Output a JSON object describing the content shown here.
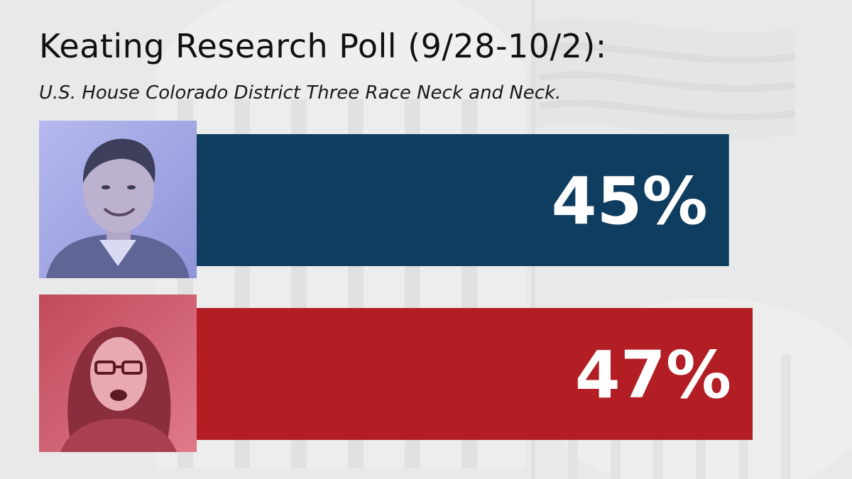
{
  "header": {
    "title": "Keating Research Poll (9/28-10/2):",
    "subtitle": "U.S. House Colorado District Three Race Neck and Neck."
  },
  "colors": {
    "background": "#dcdcdc",
    "blue": "#0e3d60",
    "red": "#b31e25"
  },
  "chart_data": {
    "type": "bar",
    "orientation": "horizontal",
    "title": "Keating Research Poll (9/28-10/2):",
    "subtitle": "U.S. House Colorado District Three Race Neck and Neck.",
    "xlabel": "",
    "ylabel": "",
    "xlim": [
      0,
      50
    ],
    "grid": false,
    "legend": "none",
    "series": [
      {
        "value": 45,
        "label": "45%",
        "color": "#0e3d60",
        "photo": "man-portrait"
      },
      {
        "value": 47,
        "label": "47%",
        "color": "#b31e25",
        "photo": "woman-portrait"
      }
    ]
  }
}
